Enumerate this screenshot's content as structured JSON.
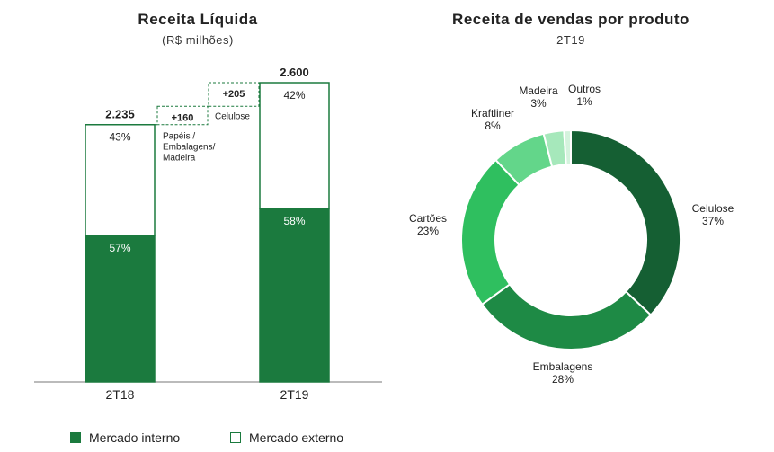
{
  "colors": {
    "dark_green": "#1b7a3e",
    "border_green": "#1b7a3e",
    "pie": [
      "#155f33",
      "#1e8a45",
      "#2fbf5f",
      "#63d68a",
      "#a6e8bb",
      "#d4f3dd"
    ]
  },
  "chart_data": [
    {
      "type": "bar",
      "title": "Receita Líquida",
      "subtitle": "(R$ milhões)",
      "categories": [
        "2T18",
        "2T19"
      ],
      "totals": [
        "2.235",
        "2.600"
      ],
      "total_values": [
        2235,
        2600
      ],
      "series": [
        {
          "name": "Mercado interno",
          "values": [
            57,
            58
          ],
          "labels": [
            "57%",
            "58%"
          ]
        },
        {
          "name": "Mercado externo",
          "values": [
            43,
            42
          ],
          "labels": [
            "43%",
            "42%"
          ]
        }
      ],
      "bridge": [
        {
          "value": "+160",
          "label_lines": [
            "Papéis /",
            "Embalagens/",
            "Madeira"
          ],
          "amount": 160
        },
        {
          "value": "+205",
          "label_lines": [
            "Celulose"
          ],
          "amount": 205
        }
      ]
    },
    {
      "type": "pie",
      "title": "Receita de vendas por produto",
      "subtitle": "2T19",
      "slices": [
        {
          "name": "Celulose",
          "value": 37,
          "label": "37%"
        },
        {
          "name": "Embalagens",
          "value": 28,
          "label": "28%"
        },
        {
          "name": "Cartões",
          "value": 23,
          "label": "23%"
        },
        {
          "name": "Kraftliner",
          "value": 8,
          "label": "8%"
        },
        {
          "name": "Madeira",
          "value": 3,
          "label": "3%"
        },
        {
          "name": "Outros",
          "value": 1,
          "label": "1%"
        }
      ]
    }
  ],
  "legend": {
    "internal": "Mercado interno",
    "external": "Mercado externo"
  }
}
